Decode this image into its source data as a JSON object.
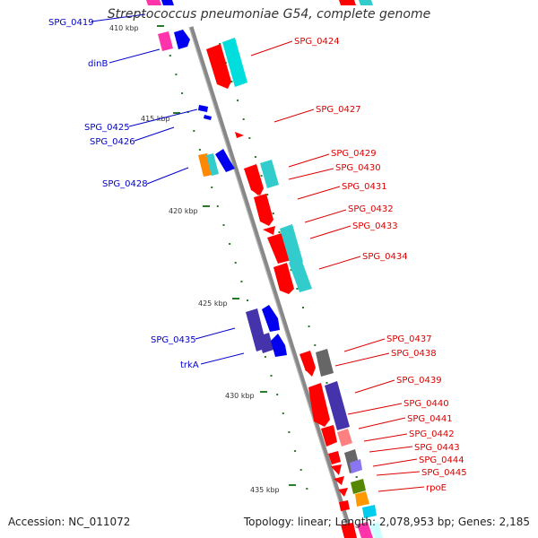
{
  "title": "Streptococcus pneumoniae G54, complete genome",
  "accession": "Accession: NC_011072",
  "summary": "Topology: linear; Length: 2,078,953 bp; Genes: 2,185",
  "colors": {
    "left_labels": "#0000cc",
    "right_labels": "#dd0000",
    "backbone": "#888888",
    "ticks": "#006600"
  },
  "kbp_ticks": [
    "410 kbp",
    "415 kbp",
    "420 kbp",
    "425 kbp",
    "430 kbp",
    "435 kbp"
  ],
  "left_genes": [
    "SPG_0419",
    "dinB",
    "SPG_0425",
    "SPG_0426",
    "SPG_0428",
    "SPG_0435",
    "trkA"
  ],
  "right_genes": [
    "SPG_0424",
    "SPG_0427",
    "SPG_0429",
    "SPG_0430",
    "SPG_0431",
    "SPG_0432",
    "SPG_0433",
    "SPG_0434",
    "SPG_0437",
    "SPG_0438",
    "SPG_0439",
    "SPG_0440",
    "SPG_0441",
    "SPG_0442",
    "SPG_0443",
    "SPG_0444",
    "SPG_0445",
    "rpoE"
  ]
}
